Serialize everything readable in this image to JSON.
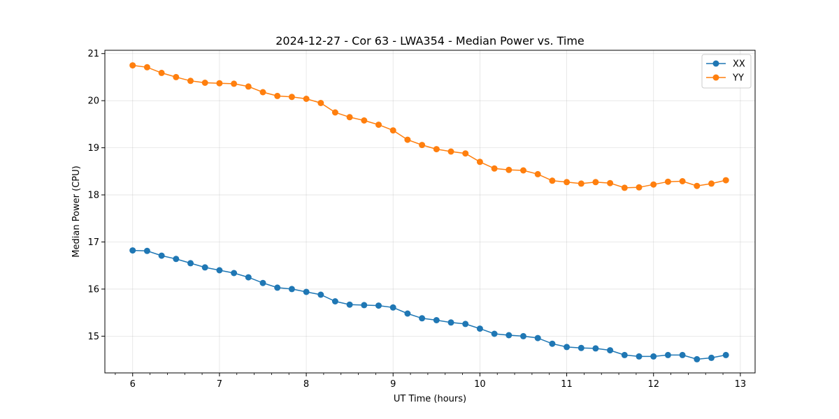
{
  "chart_data": {
    "type": "line",
    "title": "2024-12-27 - Cor 63 - LWA354 - Median Power vs. Time",
    "xlabel": "UT Time (hours)",
    "ylabel": "Median Power (CPU)",
    "xlim": [
      5.68,
      13.17
    ],
    "ylim": [
      14.22,
      21.07
    ],
    "xticks": [
      6,
      7,
      8,
      9,
      10,
      11,
      12,
      13
    ],
    "yticks": [
      15,
      16,
      17,
      18,
      19,
      20,
      21
    ],
    "grid": true,
    "legend_position": "top-right",
    "x": [
      6.0,
      6.1667,
      6.3333,
      6.5,
      6.6667,
      6.8333,
      7.0,
      7.1667,
      7.3333,
      7.5,
      7.6667,
      7.8333,
      8.0,
      8.1667,
      8.3333,
      8.5,
      8.6667,
      8.8333,
      9.0,
      9.1667,
      9.3333,
      9.5,
      9.6667,
      9.8333,
      10.0,
      10.1667,
      10.3333,
      10.5,
      10.6667,
      10.8333,
      11.0,
      11.1667,
      11.3333,
      11.5,
      11.6667,
      11.8333,
      12.0,
      12.1667,
      12.3333,
      12.5,
      12.6667,
      12.8333
    ],
    "series": [
      {
        "name": "XX",
        "color": "#1f77b4",
        "values": [
          16.82,
          16.81,
          16.71,
          16.64,
          16.55,
          16.46,
          16.4,
          16.34,
          16.25,
          16.13,
          16.03,
          16.0,
          15.94,
          15.88,
          15.74,
          15.67,
          15.66,
          15.65,
          15.61,
          15.48,
          15.38,
          15.34,
          15.29,
          15.26,
          15.16,
          15.05,
          15.02,
          15.0,
          14.96,
          14.84,
          14.77,
          14.75,
          14.74,
          14.7,
          14.6,
          14.57,
          14.57,
          14.6,
          14.6,
          14.51,
          14.54,
          14.6
        ]
      },
      {
        "name": "YY",
        "color": "#ff7f0e",
        "values": [
          20.75,
          20.71,
          20.59,
          20.5,
          20.42,
          20.38,
          20.37,
          20.36,
          20.3,
          20.18,
          20.1,
          20.08,
          20.04,
          19.95,
          19.75,
          19.65,
          19.58,
          19.49,
          19.37,
          19.17,
          19.06,
          18.97,
          18.92,
          18.88,
          18.7,
          18.56,
          18.53,
          18.52,
          18.44,
          18.3,
          18.27,
          18.24,
          18.27,
          18.25,
          18.15,
          18.16,
          18.22,
          18.28,
          18.29,
          18.19,
          18.24,
          18.31
        ]
      }
    ]
  }
}
